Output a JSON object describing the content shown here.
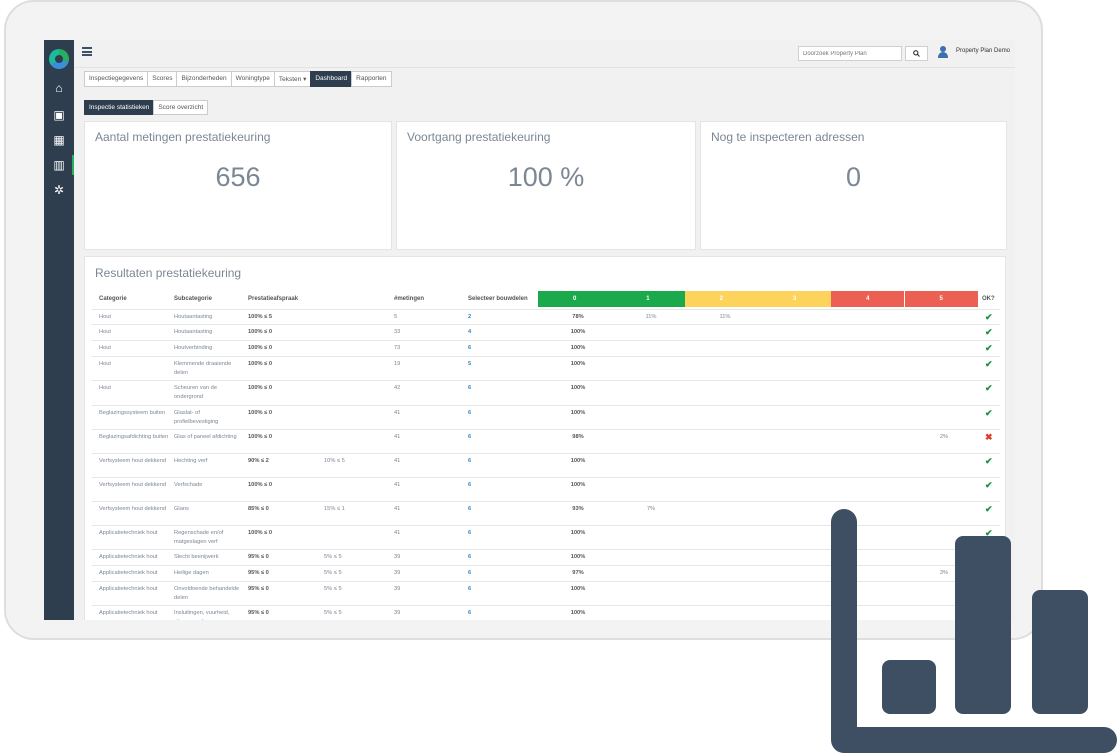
{
  "user": {
    "name": "Property Plan Demo"
  },
  "search": {
    "placeholder": "Doorzoek Property Plan",
    "button_icon": "search-icon"
  },
  "sidebar": {
    "items": [
      {
        "icon": "home-icon",
        "glyph": "⌂"
      },
      {
        "icon": "id-card-icon",
        "glyph": "▣"
      },
      {
        "icon": "store-icon",
        "glyph": "▦"
      },
      {
        "icon": "bar-chart-icon",
        "glyph": "▥"
      },
      {
        "icon": "gear-icon",
        "glyph": "✲"
      }
    ]
  },
  "tabs": [
    {
      "label": "Inspectiegegevens",
      "active": false
    },
    {
      "label": "Scores",
      "active": false
    },
    {
      "label": "Bijzonderheden",
      "active": false
    },
    {
      "label": "Woningtype",
      "active": false
    },
    {
      "label": "Teksten ▾",
      "active": false
    },
    {
      "label": "Dashboard",
      "active": true
    },
    {
      "label": "Rapporten",
      "active": false
    }
  ],
  "subtabs": [
    {
      "label": "Inspectie statistieken",
      "active": true
    },
    {
      "label": "Score overzicht",
      "active": false
    }
  ],
  "stats": [
    {
      "title": "Aantal metingen prestatiekeuring",
      "value": "656"
    },
    {
      "title": "Voortgang prestatiekeuring",
      "value": "100 %"
    },
    {
      "title": "Nog te inspecteren adressen",
      "value": "0"
    }
  ],
  "results": {
    "title": "Resultaten prestatiekeuring",
    "headers": {
      "categorie": "Categorie",
      "subcategorie": "Subcategorie",
      "prestatie": "Prestatieafspraak",
      "metingen": "#metingen",
      "bouwdelen": "Selecteer bouwdelen",
      "ok": "OK?"
    },
    "score_bars": [
      {
        "label": "0",
        "color": "#1aaa4b"
      },
      {
        "label": "1",
        "color": "#1aaa4b"
      },
      {
        "label": "2",
        "color": "#fdd35c"
      },
      {
        "label": "3",
        "color": "#fdd35c"
      },
      {
        "label": "4",
        "color": "#ec6053"
      },
      {
        "label": "5",
        "color": "#ec6053"
      }
    ],
    "rows": [
      {
        "cat": "Hout",
        "sub": "Houtaantasting",
        "p1": "100% ≤ 5",
        "p2": "",
        "metingen": "5",
        "bouwdelen": "2",
        "s0": "78%",
        "s1": "11%",
        "s2": "11%",
        "s5": "",
        "ok": "✔",
        "okc": "#1e8f3f"
      },
      {
        "cat": "Hout",
        "sub": "Houtaantasting",
        "p1": "100% ≤ 0",
        "p2": "",
        "metingen": "33",
        "bouwdelen": "4",
        "s0": "100%",
        "s1": "",
        "s2": "",
        "s5": "",
        "ok": "✔",
        "okc": "#1e8f3f"
      },
      {
        "cat": "Hout",
        "sub": "Houtverbinding",
        "p1": "100% ≤ 0",
        "p2": "",
        "metingen": "73",
        "bouwdelen": "6",
        "s0": "100%",
        "s1": "",
        "s2": "",
        "s5": "",
        "ok": "✔",
        "okc": "#1e8f3f"
      },
      {
        "cat": "Hout",
        "sub": "Klemmende draaiende delen",
        "p1": "100% ≤ 0",
        "p2": "",
        "metingen": "19",
        "bouwdelen": "5",
        "s0": "100%",
        "s1": "",
        "s2": "",
        "s5": "",
        "ok": "✔",
        "okc": "#1e8f3f"
      },
      {
        "cat": "Hout",
        "sub": "Scheuren van de ondergrond",
        "p1": "100% ≤ 0",
        "p2": "",
        "metingen": "42",
        "bouwdelen": "6",
        "s0": "100%",
        "s1": "",
        "s2": "",
        "s5": "",
        "ok": "✔",
        "okc": "#1e8f3f"
      },
      {
        "cat": "Beglazingssysteem buiten",
        "sub": "Glaslat- of profielbevestiging",
        "p1": "100% ≤ 0",
        "p2": "",
        "metingen": "41",
        "bouwdelen": "6",
        "s0": "100%",
        "s1": "",
        "s2": "",
        "s5": "",
        "ok": "✔",
        "okc": "#1e8f3f"
      },
      {
        "cat": "Beglazingsafdichting buiten",
        "sub": "Glas of paneel afdichting",
        "p1": "100% ≤ 0",
        "p2": "",
        "metingen": "41",
        "bouwdelen": "6",
        "s0": "98%",
        "s1": "",
        "s2": "",
        "s5": "2%",
        "ok": "✖",
        "okc": "#e03c31"
      },
      {
        "cat": "Verfsysteem hout dekkend",
        "sub": "Hechting verf",
        "p1": "90% ≤ 2",
        "p2": "10% ≤ 5",
        "metingen": "41",
        "bouwdelen": "6",
        "s0": "100%",
        "s1": "",
        "s2": "",
        "s5": "",
        "ok": "✔",
        "okc": "#1e8f3f"
      },
      {
        "cat": "Verfsysteem hout dekkend",
        "sub": "Verfschade",
        "p1": "100% ≤ 0",
        "p2": "",
        "metingen": "41",
        "bouwdelen": "6",
        "s0": "100%",
        "s1": "",
        "s2": "",
        "s5": "",
        "ok": "✔",
        "okc": "#1e8f3f"
      },
      {
        "cat": "Verfsysteem hout dekkend",
        "sub": "Glans",
        "p1": "85% ≤ 0",
        "p2": "15% ≤ 1",
        "metingen": "41",
        "bouwdelen": "6",
        "s0": "93%",
        "s1": "7%",
        "s2": "",
        "s5": "",
        "ok": "✔",
        "okc": "#1e8f3f"
      },
      {
        "cat": "Applicatietechniek hout",
        "sub": "Regenschade en/of matgeslagen verf",
        "p1": "100% ≤ 0",
        "p2": "",
        "metingen": "41",
        "bouwdelen": "6",
        "s0": "100%",
        "s1": "",
        "s2": "",
        "s5": "",
        "ok": "✔",
        "okc": "#1e8f3f"
      },
      {
        "cat": "Applicatietechniek hout",
        "sub": "Slecht beenijwerk",
        "p1": "95% ≤ 0",
        "p2": "5% ≤ 5",
        "metingen": "39",
        "bouwdelen": "6",
        "s0": "100%",
        "s1": "",
        "s2": "",
        "s5": "",
        "ok": "",
        "okc": "#1e8f3f"
      },
      {
        "cat": "Applicatietechniek hout",
        "sub": "Heilige dagen",
        "p1": "95% ≤ 0",
        "p2": "5% ≤ 5",
        "metingen": "39",
        "bouwdelen": "6",
        "s0": "97%",
        "s1": "",
        "s2": "",
        "s5": "3%",
        "ok": "",
        "okc": "#1e8f3f"
      },
      {
        "cat": "Applicatietechniek hout",
        "sub": "Onvoldoende behandelde delen",
        "p1": "95% ≤ 0",
        "p2": "5% ≤ 5",
        "metingen": "39",
        "bouwdelen": "6",
        "s0": "100%",
        "s1": "",
        "s2": "",
        "s5": "",
        "ok": "",
        "okc": "#1e8f3f"
      },
      {
        "cat": "Applicatietechniek hout",
        "sub": "Insluitingen, vuurheid, stippen, e.d.",
        "p1": "95% ≤ 0",
        "p2": "5% ≤ 5",
        "metingen": "39",
        "bouwdelen": "6",
        "s0": "100%",
        "s1": "",
        "s2": "",
        "s5": "",
        "ok": "",
        "okc": "#1e8f3f"
      }
    ]
  },
  "decor": {
    "icon": "bar-chart-icon",
    "color": "#3f4f63"
  }
}
